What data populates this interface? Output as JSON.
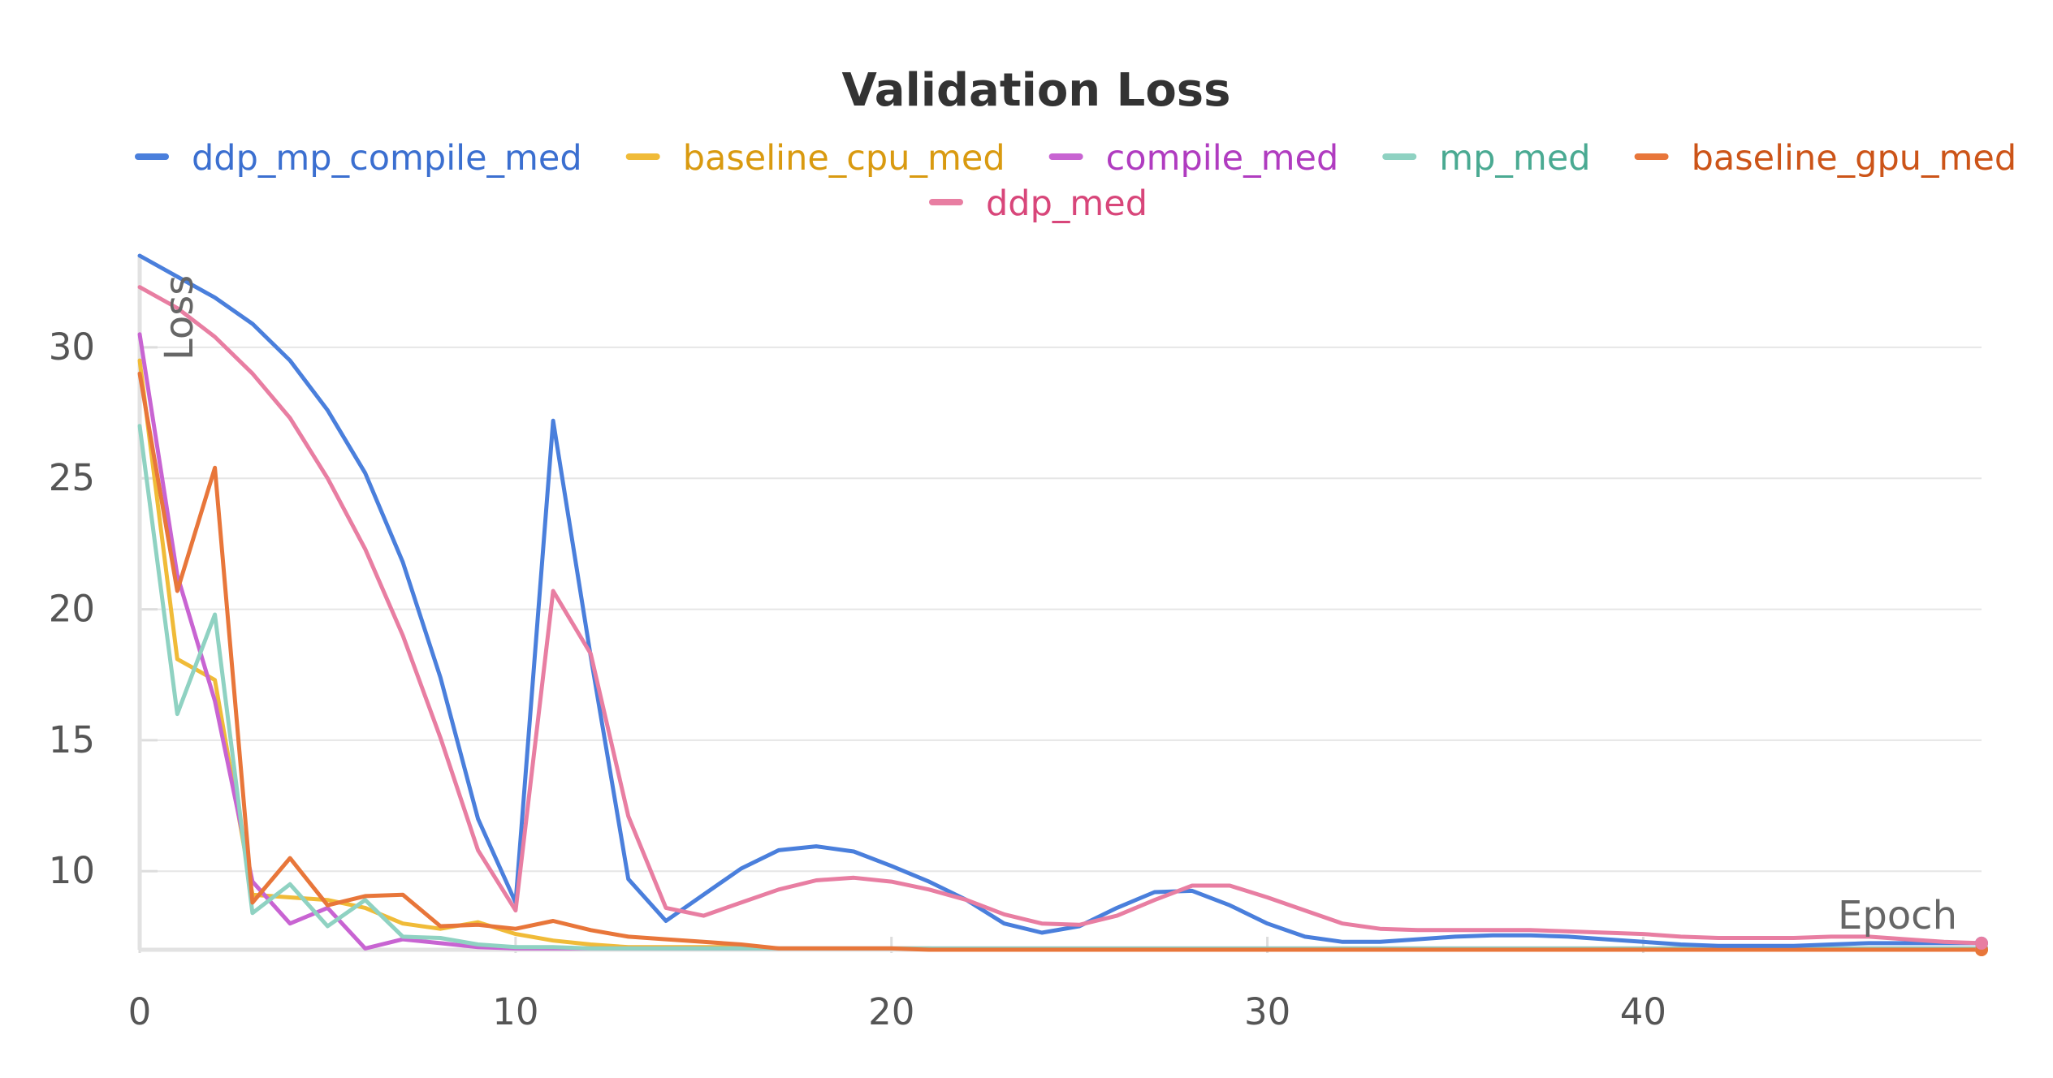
{
  "chart_data": {
    "type": "line",
    "title": "Validation Loss",
    "xlabel": "Epoch",
    "ylabel": "Loss",
    "xlim": [
      0,
      49
    ],
    "ylim": [
      7,
      33.5
    ],
    "x_ticks": [
      0,
      10,
      20,
      30,
      40
    ],
    "y_ticks": [
      10,
      15,
      20,
      25,
      30
    ],
    "grid": true,
    "legend_position": "top",
    "series": [
      {
        "name": "ddp_mp_compile_med",
        "color": "#4a7fdc",
        "text_color": "#3b6fd0",
        "values": [
          33.5,
          32.7,
          31.9,
          30.9,
          29.5,
          27.6,
          25.2,
          21.8,
          17.4,
          12.0,
          8.8,
          27.2,
          18.2,
          9.7,
          8.1,
          9.1,
          10.1,
          10.8,
          10.95,
          10.75,
          10.2,
          9.6,
          8.9,
          8.0,
          7.65,
          7.9,
          8.6,
          9.2,
          9.25,
          8.7,
          8.0,
          7.5,
          7.3,
          7.3,
          7.4,
          7.5,
          7.55,
          7.55,
          7.5,
          7.4,
          7.3,
          7.2,
          7.15,
          7.15,
          7.15,
          7.2,
          7.25,
          7.25,
          7.25,
          7.25
        ]
      },
      {
        "name": "baseline_cpu_med",
        "color": "#f0bb38",
        "text_color": "#d99a10",
        "values": [
          29.5,
          18.1,
          17.3,
          9.1,
          9.0,
          8.9,
          8.6,
          8.0,
          7.8,
          8.05,
          7.6,
          7.35,
          7.2,
          7.1,
          7.1,
          7.1,
          7.1,
          7.05,
          7.05,
          7.05,
          7.05,
          7.05,
          7.0,
          7.0,
          7.0,
          7.0,
          7.0,
          7.0,
          7.0,
          7.0,
          7.0,
          7.0,
          7.0,
          7.0,
          7.0,
          7.0,
          7.0,
          7.0,
          7.0,
          7.0,
          7.0,
          7.0,
          7.0,
          7.0,
          7.0,
          7.0,
          7.0,
          7.0,
          7.0,
          7.0
        ]
      },
      {
        "name": "compile_med",
        "color": "#c864d2",
        "text_color": "#b03cc0",
        "values": [
          30.5,
          21.3,
          16.5,
          9.6,
          8.0,
          8.6,
          7.05,
          7.4,
          7.25,
          7.1,
          7.05,
          7.05,
          7.05,
          7.05,
          7.05,
          7.05,
          7.05,
          7.05,
          7.05,
          7.05,
          7.05,
          7.05,
          7.05,
          7.05,
          7.05,
          7.05,
          7.05,
          7.05,
          7.05,
          7.05,
          7.05,
          7.05,
          7.05,
          7.05,
          7.05,
          7.05,
          7.05,
          7.05,
          7.05,
          7.05,
          7.05,
          7.05,
          7.05,
          7.05,
          7.05,
          7.05,
          7.05,
          7.05,
          7.05,
          7.05
        ]
      },
      {
        "name": "mp_med",
        "color": "#8fd2c2",
        "text_color": "#4aaa92",
        "values": [
          27.0,
          16.0,
          19.8,
          8.4,
          9.5,
          7.9,
          8.9,
          7.5,
          7.45,
          7.2,
          7.1,
          7.1,
          7.05,
          7.05,
          7.05,
          7.05,
          7.05,
          7.05,
          7.05,
          7.05,
          7.05,
          7.05,
          7.05,
          7.05,
          7.05,
          7.05,
          7.05,
          7.05,
          7.05,
          7.05,
          7.05,
          7.05,
          7.05,
          7.05,
          7.05,
          7.05,
          7.05,
          7.05,
          7.05,
          7.05,
          7.05,
          7.05,
          7.05,
          7.05,
          7.05,
          7.05,
          7.05,
          7.05,
          7.05,
          7.05
        ]
      },
      {
        "name": "baseline_gpu_med",
        "color": "#e8763a",
        "text_color": "#cc5418",
        "values": [
          29.0,
          20.7,
          25.4,
          8.8,
          10.5,
          8.7,
          9.05,
          9.1,
          7.9,
          7.95,
          7.8,
          8.1,
          7.75,
          7.5,
          7.4,
          7.3,
          7.2,
          7.05,
          7.05,
          7.05,
          7.05,
          7.0,
          7.0,
          7.0,
          7.0,
          7.0,
          7.0,
          7.0,
          7.0,
          7.0,
          7.0,
          7.0,
          7.0,
          7.0,
          7.0,
          7.0,
          7.0,
          7.0,
          7.0,
          7.0,
          7.0,
          7.0,
          7.0,
          7.0,
          7.0,
          7.0,
          7.0,
          7.0,
          7.0,
          7.0
        ]
      },
      {
        "name": "ddp_med",
        "color": "#e87ea2",
        "text_color": "#d8467a",
        "values": [
          32.3,
          31.5,
          30.4,
          29.0,
          27.3,
          25.0,
          22.3,
          19.0,
          15.1,
          10.8,
          8.5,
          20.7,
          18.3,
          12.1,
          8.6,
          8.3,
          8.8,
          9.3,
          9.65,
          9.75,
          9.6,
          9.3,
          8.9,
          8.35,
          8.0,
          7.95,
          8.3,
          8.9,
          9.45,
          9.45,
          9.0,
          8.5,
          8.0,
          7.8,
          7.75,
          7.75,
          7.75,
          7.75,
          7.7,
          7.65,
          7.6,
          7.5,
          7.45,
          7.45,
          7.45,
          7.5,
          7.5,
          7.4,
          7.3,
          7.25
        ]
      }
    ]
  }
}
